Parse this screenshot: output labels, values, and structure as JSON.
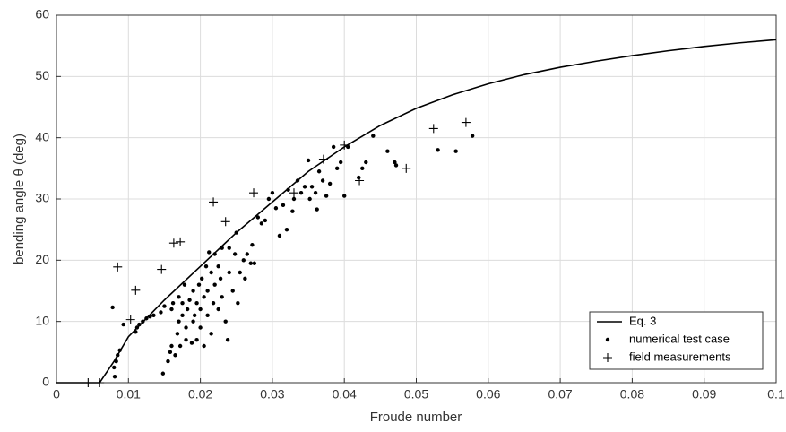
{
  "chart_data": {
    "type": "scatter",
    "x_label": "Froude number",
    "y_label": "bending angle θ (deg)",
    "xlim": [
      0,
      0.1
    ],
    "ylim": [
      0,
      60
    ],
    "xticks": [
      0,
      0.01,
      0.02,
      0.03,
      0.04,
      0.05,
      0.06,
      0.07,
      0.08,
      0.09,
      0.1
    ],
    "yticks": [
      0,
      10,
      20,
      30,
      40,
      50,
      60
    ],
    "grid": true,
    "legend": "lower right",
    "series": [
      {
        "name": "Eq. 3",
        "type": "line",
        "color": "#000000",
        "x": [
          0,
          0.005,
          0.006,
          0.008,
          0.01,
          0.015,
          0.02,
          0.025,
          0.03,
          0.035,
          0.04,
          0.045,
          0.05,
          0.055,
          0.06,
          0.065,
          0.07,
          0.075,
          0.08,
          0.085,
          0.09,
          0.095,
          0.1
        ],
        "values": [
          0,
          0,
          0,
          3.5,
          7.5,
          13.5,
          19,
          24.5,
          29.5,
          34.5,
          38.5,
          42,
          44.8,
          47,
          48.8,
          50.3,
          51.5,
          52.5,
          53.4,
          54.2,
          54.9,
          55.5,
          56
        ]
      },
      {
        "name": "numerical test case",
        "type": "scatter",
        "marker": "dot",
        "color": "#000000",
        "x": [
          0.0078,
          0.0081,
          0.008,
          0.0083,
          0.0085,
          0.0088,
          0.0093,
          0.011,
          0.0112,
          0.0115,
          0.012,
          0.0125,
          0.013,
          0.0135,
          0.0145,
          0.015,
          0.0148,
          0.0155,
          0.0158,
          0.016,
          0.016,
          0.0162,
          0.0165,
          0.0168,
          0.017,
          0.017,
          0.0172,
          0.0175,
          0.0175,
          0.0178,
          0.018,
          0.018,
          0.0182,
          0.0185,
          0.0188,
          0.019,
          0.019,
          0.0192,
          0.0195,
          0.0195,
          0.0198,
          0.02,
          0.02,
          0.0202,
          0.0205,
          0.0205,
          0.0208,
          0.021,
          0.021,
          0.0212,
          0.0215,
          0.0215,
          0.0218,
          0.022,
          0.022,
          0.0225,
          0.0225,
          0.0228,
          0.023,
          0.023,
          0.0235,
          0.0238,
          0.024,
          0.024,
          0.0245,
          0.0248,
          0.025,
          0.0252,
          0.0255,
          0.026,
          0.0262,
          0.0265,
          0.027,
          0.0272,
          0.0275,
          0.028,
          0.0285,
          0.029,
          0.0295,
          0.03,
          0.0305,
          0.031,
          0.0315,
          0.032,
          0.0322,
          0.0328,
          0.033,
          0.0335,
          0.034,
          0.0345,
          0.035,
          0.0352,
          0.0355,
          0.036,
          0.0362,
          0.0365,
          0.037,
          0.0375,
          0.038,
          0.0385,
          0.039,
          0.0395,
          0.04,
          0.0405,
          0.042,
          0.0425,
          0.043,
          0.044,
          0.046,
          0.047,
          0.0472,
          0.053,
          0.0555,
          0.0578
        ],
        "values": [
          12.3,
          1,
          2.5,
          3.5,
          4.5,
          5.3,
          9.5,
          8.3,
          9,
          9.5,
          10,
          10.5,
          10.8,
          11,
          11.5,
          12.5,
          1.5,
          3.5,
          5,
          6,
          12,
          13,
          4.5,
          8,
          10,
          14,
          6,
          11,
          13,
          16,
          7,
          9,
          12,
          13.5,
          6.5,
          10,
          15,
          11,
          7,
          13,
          16,
          9,
          12,
          17,
          6,
          14,
          19,
          11,
          15,
          21.3,
          8,
          18,
          13,
          16,
          21,
          12,
          19,
          17,
          14,
          22,
          10,
          7,
          18,
          22,
          15,
          21,
          24.5,
          13,
          18,
          20,
          17,
          21,
          19.5,
          22.5,
          19.5,
          27,
          26,
          26.5,
          30,
          31,
          28.5,
          24,
          29,
          25,
          31.5,
          28,
          30,
          33,
          31,
          32,
          36.3,
          30,
          32,
          31,
          28.3,
          34.5,
          33,
          30.5,
          32.5,
          38.5,
          35,
          36,
          30.5,
          38.5,
          33.5,
          35,
          36,
          40.3,
          37.8,
          36,
          35.5,
          38,
          37.8,
          40.3
        ]
      },
      {
        "name": "field measurements",
        "type": "scatter",
        "marker": "plus",
        "color": "#000000",
        "x": [
          0.0044,
          0.006,
          0.0085,
          0.011,
          0.0103,
          0.0146,
          0.0163,
          0.0172,
          0.0218,
          0.0235,
          0.0274,
          0.033,
          0.0371,
          0.04,
          0.0421,
          0.0486,
          0.0524,
          0.0569
        ],
        "values": [
          0,
          0,
          18.9,
          15.1,
          10.3,
          18.5,
          22.8,
          23,
          29.5,
          26.3,
          31,
          31,
          36.5,
          38.8,
          33,
          35,
          41.5,
          42.5
        ]
      }
    ]
  }
}
